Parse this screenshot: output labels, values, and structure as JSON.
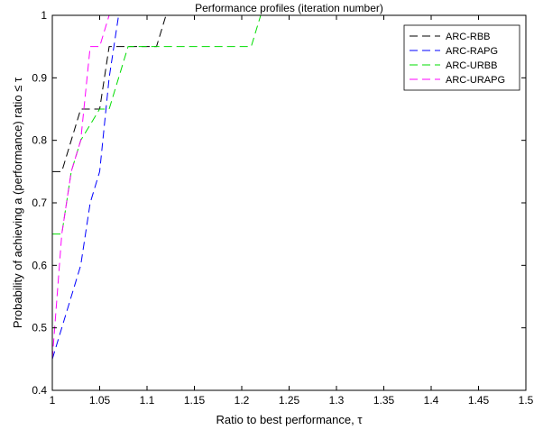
{
  "chart_data": {
    "type": "line",
    "title": "Performance profiles (iteration number)",
    "xlabel": "Ratio to best performance, τ",
    "ylabel": "Probability of achieving a (performance) ratio ≤ τ",
    "xlim": [
      1,
      1.5
    ],
    "ylim": [
      0.4,
      1
    ],
    "x_ticks": [
      "1",
      "1.05",
      "1.1",
      "1.15",
      "1.2",
      "1.25",
      "1.3",
      "1.35",
      "1.4",
      "1.45",
      "1.5"
    ],
    "y_ticks": [
      "0.4",
      "0.5",
      "0.6",
      "0.7",
      "0.8",
      "0.9",
      "1"
    ],
    "grid": false,
    "legend_position": "top-right",
    "series": [
      {
        "name": "ARC-RBB",
        "color": "#000000",
        "dash": "dashed",
        "x": [
          1,
          1.01,
          1.03,
          1.04,
          1.05,
          1.06,
          1.08,
          1.11,
          1.12,
          1.5
        ],
        "y": [
          0.75,
          0.75,
          0.85,
          0.85,
          0.85,
          0.95,
          0.95,
          0.95,
          1,
          1
        ]
      },
      {
        "name": "ARC-RAPG",
        "color": "#0000ff",
        "dash": "dashed",
        "x": [
          1,
          1.01,
          1.02,
          1.03,
          1.04,
          1.05,
          1.06,
          1.07,
          1.5
        ],
        "y": [
          0.45,
          0.5,
          0.55,
          0.6,
          0.7,
          0.75,
          0.9,
          1,
          1
        ]
      },
      {
        "name": "ARC-URBB",
        "color": "#00dd00",
        "dash": "dashed",
        "x": [
          1,
          1.01,
          1.02,
          1.03,
          1.05,
          1.06,
          1.08,
          1.21,
          1.22,
          1.5
        ],
        "y": [
          0.65,
          0.65,
          0.75,
          0.8,
          0.85,
          0.85,
          0.95,
          0.95,
          1,
          1
        ]
      },
      {
        "name": "ARC-URAPG",
        "color": "#ff00ff",
        "dash": "dashed",
        "x": [
          1,
          1.01,
          1.02,
          1.03,
          1.04,
          1.05,
          1.06,
          1.5
        ],
        "y": [
          0.45,
          0.65,
          0.75,
          0.8,
          0.95,
          0.95,
          1,
          1
        ]
      }
    ]
  }
}
